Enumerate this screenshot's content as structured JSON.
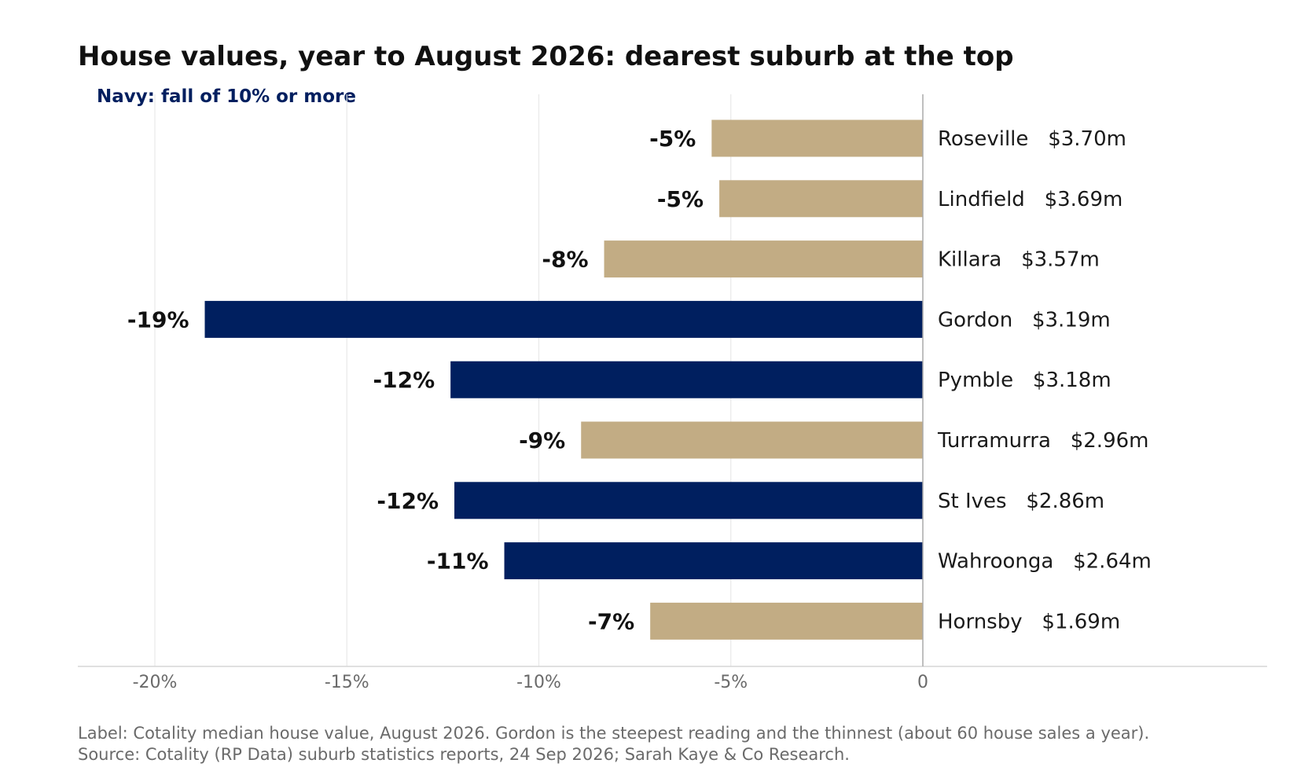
{
  "chart_data": {
    "type": "bar",
    "orientation": "horizontal",
    "title": "House values, year to August 2026: dearest suburb at the top",
    "subtitle": "Navy: fall of 10% or more",
    "categories": [
      "Roseville",
      "Lindfield",
      "Killara",
      "Gordon",
      "Pymble",
      "Turramurra",
      "St Ives",
      "Wahroonga",
      "Hornsby"
    ],
    "median_values": [
      "$3.70m",
      "$3.69m",
      "$3.57m",
      "$3.19m",
      "$3.18m",
      "$2.96m",
      "$2.86m",
      "$2.64m",
      "$1.69m"
    ],
    "values": [
      -5.5,
      -5.3,
      -8.3,
      -18.7,
      -12.3,
      -8.9,
      -12.2,
      -10.9,
      -7.1
    ],
    "data_labels": [
      "-5%",
      "-5%",
      "-8%",
      "-19%",
      "-12%",
      "-9%",
      "-12%",
      "-11%",
      "-7%"
    ],
    "xlim": [
      -22,
      9
    ],
    "x_ticks": [
      -20,
      -15,
      -10,
      -5,
      0
    ],
    "x_tick_labels": [
      "-20%",
      "-15%",
      "-10%",
      "-5%",
      "0"
    ],
    "grid": "vertical",
    "threshold": -10,
    "colors": {
      "large_fall": "#001f5f",
      "small_fall": "#c2ac84",
      "subtitle": "#001f5f"
    }
  },
  "footer": {
    "line1": "Label: Cotality median house value, August 2026. Gordon is the steepest reading and the thinnest (about 60 house sales a year).",
    "line2": "Source: Cotality (RP Data) suburb statistics reports, 24 Sep 2026; Sarah Kaye & Co Research."
  }
}
